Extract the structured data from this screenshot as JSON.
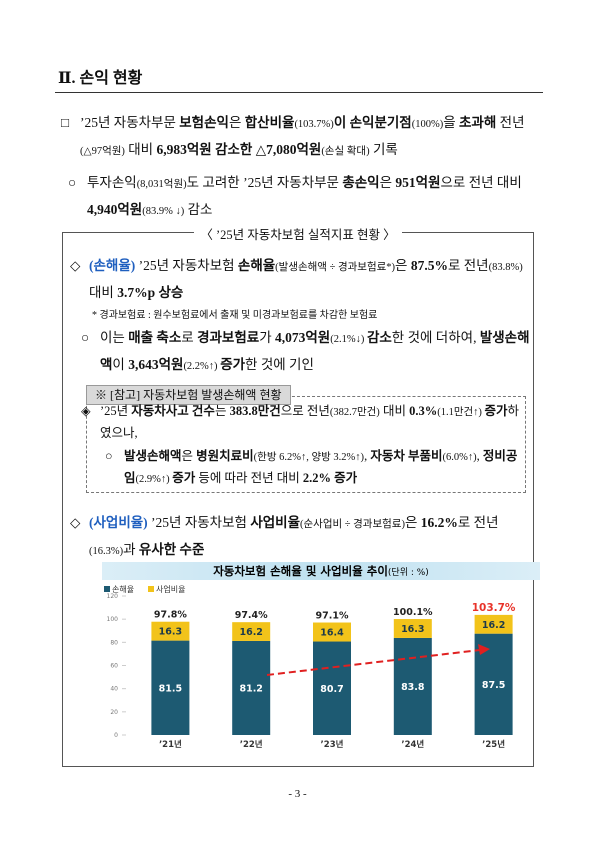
{
  "heading": "Ⅱ. 손익 현황",
  "paragraphs": [
    {
      "marker": "□",
      "runs": [
        "’25년 자동차부문 ",
        "보험손익",
        "은 ",
        "합산비율",
        "(103.7%)",
        "이 ",
        "손익분기점",
        "(100%)",
        "을 ",
        "초과해",
        " 전년",
        "(△97억원)",
        " 대비 ",
        "6,983억원 감소한 △7,080억원",
        "(손실 확대)",
        " 기록"
      ]
    },
    {
      "marker": "○",
      "runs": [
        "투자손익",
        "(8,031억원)",
        "도 고려한 ’25년 자동차부문 ",
        "총손익",
        "은 ",
        "951억원",
        "으로 전년 대비 ",
        "4,940억원",
        "(83.9% ↓)",
        " 감소"
      ]
    },
    {
      "marker": "◇",
      "runs": [
        "(손해율)",
        " ’25년 자동차보험 ",
        "손해율",
        "(발생손해액 ÷ 경과보험료*)",
        "은 ",
        "87.5%",
        "로 전년",
        "(83.8%)",
        " 대비 ",
        "3.7%p 상승"
      ]
    },
    {
      "marker": "○",
      "runs": [
        "이는 ",
        "매출 축소",
        "로 ",
        "경과보험료",
        "가 ",
        "4,073억원",
        "(2.1%↓) ",
        "감소",
        "한 것에 더하여, ",
        "발생손해액",
        "이 ",
        "3,643억원",
        "(2.2%↑) ",
        "증가",
        "한 것에 기인"
      ]
    },
    {
      "marker": "◈",
      "runs": [
        "’25년 ",
        "자동차사고 건수",
        "는 ",
        "383.8만건",
        "으로 전년",
        "(382.7만건)",
        " 대비 ",
        "0.3%",
        "(1.1만건↑) ",
        "증가",
        "하였으나,"
      ]
    },
    {
      "marker": "○",
      "runs": [
        "발생손해액",
        "은 ",
        "병원치료비",
        "(한방 6.2%↑, 양방 3.2%↑)",
        ", ",
        "자동차 부품비",
        "(6.0%↑)",
        ", ",
        "정비공임",
        "(2.9%↑) ",
        "증가",
        " 등에 따라 전년 대비 ",
        "2.2% 증가"
      ]
    },
    {
      "marker": "◇",
      "runs": [
        "(사업비율)",
        " ’25년 자동차보험 ",
        "사업비율",
        "(순사업비 ÷ 경과보험료)",
        "은 ",
        "16.2%",
        "로 전년",
        "(16.3%)",
        "과 ",
        "유사한 수준"
      ]
    }
  ],
  "box_title": "〈 ’25년 자동차보험 실적지표 현황 〉",
  "note": "* 경과보험료 : 원수보험료에서 출재 및 미경과보험료를 차감한 보험료",
  "ref_title": "※ [참고] 자동차보험 발생손해액 현황",
  "chart_data": {
    "type": "bar",
    "stacked": true,
    "title": "자동차보험 손해율 및 사업비율 추이",
    "unit": "(단위 : %)",
    "categories": [
      "’21년",
      "’22년",
      "’23년",
      "’24년",
      "’25년"
    ],
    "series": [
      {
        "name": "손해율",
        "color": "#1d5a72",
        "values": [
          81.5,
          81.2,
          80.7,
          83.8,
          87.5
        ]
      },
      {
        "name": "사업비율",
        "color": "#f2c31a",
        "values": [
          16.3,
          16.2,
          16.4,
          16.3,
          16.2
        ]
      }
    ],
    "totals": [
      "97.8%",
      "97.4%",
      "97.1%",
      "100.1%",
      "103.7%"
    ],
    "ylim": [
      0,
      120
    ],
    "yticks": [
      0,
      20,
      40,
      60,
      80,
      100,
      120
    ]
  },
  "footer": "- 3 -"
}
